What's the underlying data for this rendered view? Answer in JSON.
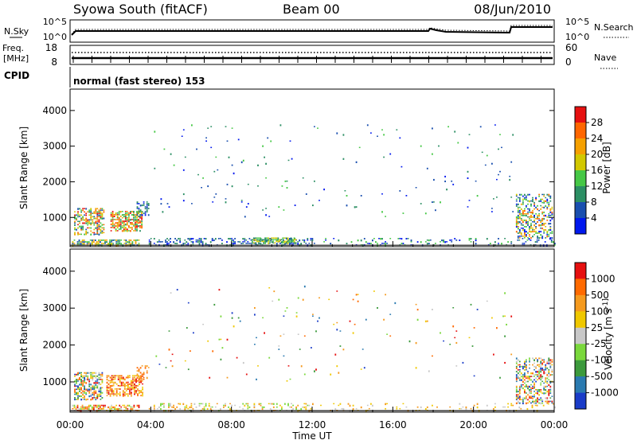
{
  "header": {
    "station": "Syowa South (fitACF)",
    "beam": "Beam 00",
    "date": "08/Jun/2010"
  },
  "top_panels": {
    "nsky_label": "N.Sky",
    "nsearch_label": "N.Search",
    "sky_ticks": [
      "10^5",
      "10^0"
    ],
    "search_ticks": [
      "10^5",
      "10^0"
    ],
    "freq_label_1": "Freq.",
    "freq_label_2": "[MHz]",
    "freq_ticks": [
      "18",
      "8"
    ],
    "nave_label": "Nave",
    "nave_ticks": [
      "60",
      "0"
    ],
    "cpid_label": "CPID",
    "cpid_text": "normal (fast stereo) 153"
  },
  "chart_data": [
    {
      "type": "heatmap",
      "name": "power",
      "ylabel": "Slant Range [km]",
      "yticks": [
        "1000",
        "2000",
        "3000",
        "4000"
      ],
      "ylim": [
        180,
        4600
      ],
      "colorbar_label": "Power [dB]",
      "colorbar_ticks": [
        "28",
        "24",
        "20",
        "16",
        "12",
        "8",
        "4"
      ],
      "colors": [
        "#0018ee",
        "#1a4faf",
        "#2c8f64",
        "#46c846",
        "#d2c800",
        "#f5a000",
        "#ff6600",
        "#e61010"
      ],
      "clusters": [
        {
          "t0": 0.1,
          "t1": 3.4,
          "r0": 200,
          "r1": 360,
          "density": 0.8,
          "levels": [
            1,
            5
          ]
        },
        {
          "t0": 0.2,
          "t1": 1.7,
          "r0": 500,
          "r1": 1250,
          "density": 0.55,
          "levels": [
            1,
            7
          ]
        },
        {
          "t0": 2.0,
          "t1": 3.6,
          "r0": 600,
          "r1": 1150,
          "density": 0.65,
          "levels": [
            2,
            7
          ]
        },
        {
          "t0": 3.3,
          "t1": 3.9,
          "r0": 1000,
          "r1": 1450,
          "density": 0.45,
          "levels": [
            0,
            2
          ]
        },
        {
          "t0": 3.9,
          "t1": 12.0,
          "r0": 200,
          "r1": 420,
          "density": 0.35,
          "levels": [
            0,
            2
          ]
        },
        {
          "t0": 9.0,
          "t1": 11.2,
          "r0": 260,
          "r1": 420,
          "density": 0.65,
          "levels": [
            2,
            4
          ]
        },
        {
          "t0": 12.0,
          "t1": 24.0,
          "r0": 200,
          "r1": 400,
          "density": 0.15,
          "levels": [
            0,
            3
          ]
        },
        {
          "t0": 22.1,
          "t1": 23.9,
          "r0": 400,
          "r1": 1650,
          "density": 0.45,
          "levels": [
            0,
            6
          ]
        },
        {
          "t0": 4.0,
          "t1": 22.0,
          "r0": 1000,
          "r1": 3600,
          "density": 0.012,
          "levels": [
            0,
            3
          ]
        }
      ]
    },
    {
      "type": "heatmap",
      "name": "velocity",
      "ylabel": "Slant Range [km]",
      "yticks": [
        "1000",
        "2000",
        "3000",
        "4000"
      ],
      "ylim": [
        180,
        4600
      ],
      "colorbar_label": "Velocity [m s^-1]",
      "colorbar_ticks": [
        "1000",
        "500",
        "100",
        "25",
        "-25",
        "-100",
        "-500",
        "-1000"
      ],
      "colors": [
        "#1a3cc8",
        "#2a7ab0",
        "#3c9a3c",
        "#7ad83c",
        "#c8c8c8",
        "#f0c800",
        "#f59a1e",
        "#ff6a00",
        "#e61010"
      ],
      "clusters": [
        {
          "t0": 0.1,
          "t1": 3.4,
          "r0": 200,
          "r1": 380,
          "density": 0.55,
          "levels": [
            3,
            8
          ]
        },
        {
          "t0": 0.2,
          "t1": 1.6,
          "r0": 500,
          "r1": 1250,
          "density": 0.55,
          "levels": [
            0,
            8
          ]
        },
        {
          "t0": 1.8,
          "t1": 3.6,
          "r0": 600,
          "r1": 1150,
          "density": 0.65,
          "levels": [
            5,
            8
          ]
        },
        {
          "t0": 3.3,
          "t1": 3.9,
          "r0": 1000,
          "r1": 1450,
          "density": 0.4,
          "levels": [
            6,
            7
          ]
        },
        {
          "t0": 3.9,
          "t1": 12.0,
          "r0": 200,
          "r1": 420,
          "density": 0.3,
          "levels": [
            3,
            6
          ]
        },
        {
          "t0": 12.0,
          "t1": 24.0,
          "r0": 200,
          "r1": 400,
          "density": 0.1,
          "levels": [
            4,
            6
          ]
        },
        {
          "t0": 22.1,
          "t1": 23.9,
          "r0": 400,
          "r1": 1650,
          "density": 0.45,
          "levels": [
            0,
            8
          ]
        },
        {
          "t0": 4.0,
          "t1": 22.0,
          "r0": 1000,
          "r1": 3600,
          "density": 0.012,
          "levels": [
            0,
            8
          ]
        }
      ]
    }
  ],
  "x_axis": {
    "ticks": [
      "00:00",
      "04:00",
      "08:00",
      "12:00",
      "16:00",
      "20:00",
      "00:00"
    ],
    "label": "Time UT"
  }
}
